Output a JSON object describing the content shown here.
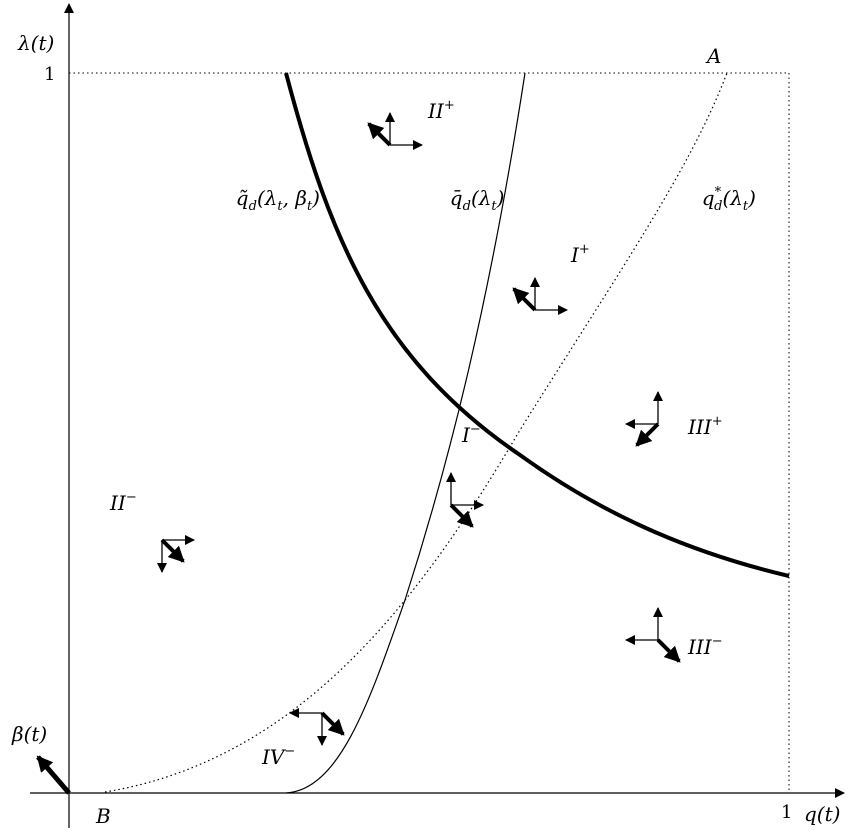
{
  "axes": {
    "x_label": "q(t)",
    "y_label": "λ(t)",
    "beta_label": "β(t)",
    "x_tick": "1",
    "y_tick": "1"
  },
  "points": {
    "A": "A",
    "B": "B"
  },
  "curves": {
    "tilde_qd": {
      "base": "q̃",
      "sub": "d",
      "args": "(λ",
      "sub2": "t",
      "mid": ", β",
      "sub3": "t",
      "close": ")"
    },
    "bar_qd": {
      "base": "q̄",
      "sub": "d",
      "args": "(λ",
      "sub2": "t",
      "close": ")"
    },
    "qd_star": {
      "base": "q",
      "sub": "d",
      "sup": "*",
      "args": "(λ",
      "sub2": "t",
      "close": ")"
    }
  },
  "regions": {
    "II_plus": {
      "base": "II",
      "sup": "+"
    },
    "I_plus": {
      "base": "I",
      "sup": "+"
    },
    "III_plus": {
      "base": "III",
      "sup": "+"
    },
    "I_minus": {
      "base": "I",
      "sup": "−"
    },
    "II_minus": {
      "base": "II",
      "sup": "−"
    },
    "III_minus": {
      "base": "III",
      "sup": "−"
    },
    "IV_minus": {
      "base": "IV",
      "sup": "−"
    }
  },
  "styles": {
    "stroke": "#000000",
    "background": "#ffffff"
  }
}
